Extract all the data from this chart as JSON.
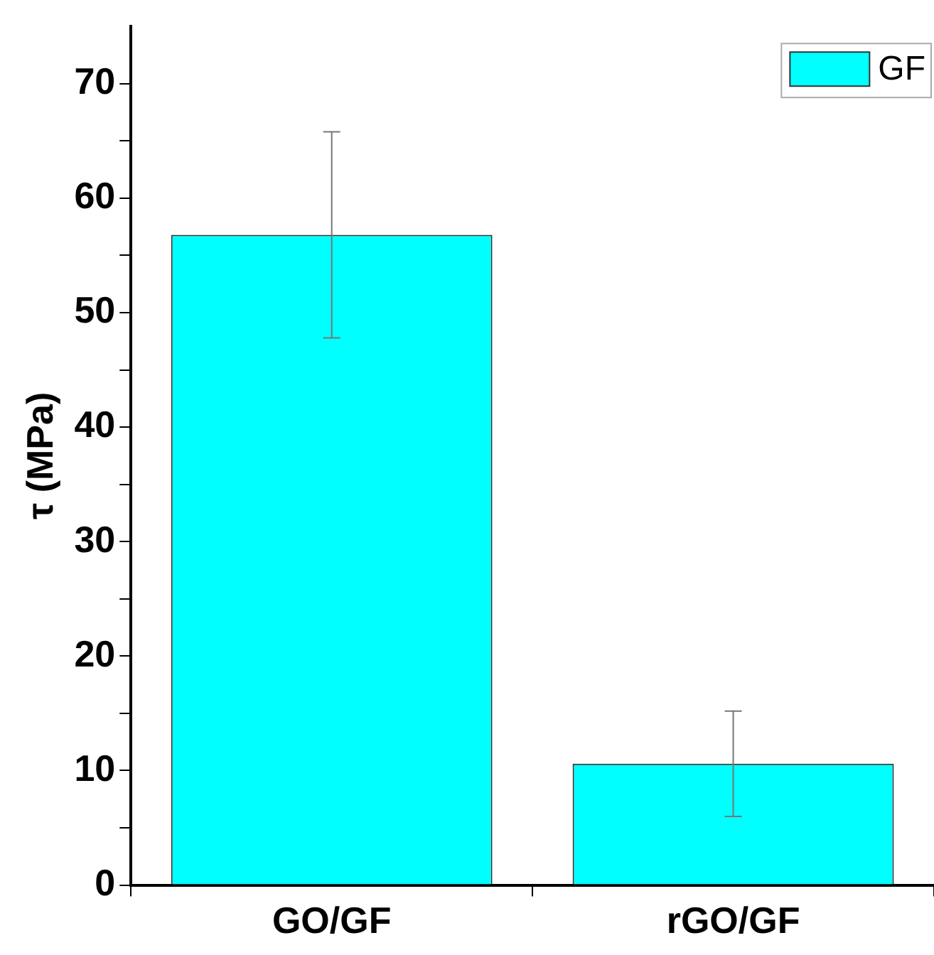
{
  "chart_data": {
    "type": "bar",
    "ylabel": "τ (MPa)",
    "categories": [
      "GO/GF",
      "rGO/GF"
    ],
    "series": [
      {
        "name": "GF",
        "color": "#00ffff",
        "values": [
          56.8,
          10.6
        ],
        "errors": [
          9.0,
          4.6
        ]
      }
    ],
    "ylim": [
      0,
      75
    ],
    "yticks": [
      0,
      {
        "value": 5,
        "label": null
      },
      10,
      {
        "value": 15,
        "label": null
      },
      20,
      {
        "value": 25,
        "label": null
      },
      30,
      {
        "value": 35,
        "label": null
      },
      40,
      {
        "value": 45,
        "label": null
      },
      50,
      {
        "value": 55,
        "label": null
      },
      60,
      {
        "value": 65,
        "label": null
      },
      70
    ],
    "legend": "top right"
  }
}
